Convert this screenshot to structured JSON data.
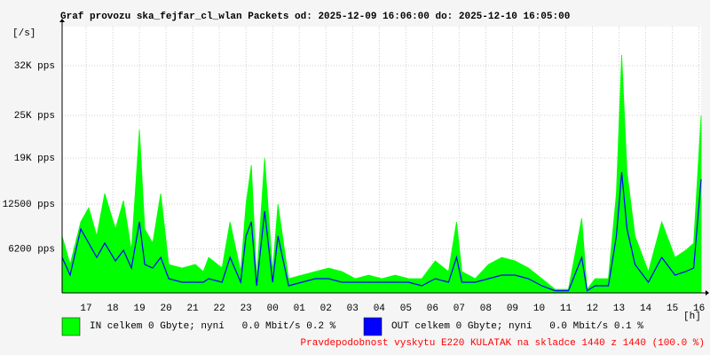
{
  "chart_data": {
    "type": "area",
    "title": "Graf provozu ska_fejfar_cl_wlan Packets od: 2025-12-09 16:06:00 do: 2025-12-10 16:05:00",
    "y_unit_label": "[/s]",
    "x_unit_label": "[h]",
    "footer": "Pravdepodobnost vyskytu E220 KULATAK na skladce 1440 z 1440 (100.0 %)",
    "xlim": [
      0,
      23.98
    ],
    "ylim": [
      0,
      37500
    ],
    "yticks": [
      {
        "value": 6200,
        "label": "6200 pps"
      },
      {
        "value": 12500,
        "label": "12500 pps"
      },
      {
        "value": 19000,
        "label": "19K pps"
      },
      {
        "value": 25000,
        "label": "25K pps"
      },
      {
        "value": 32000,
        "label": "32K pps"
      }
    ],
    "xticks": [
      {
        "value": 0.9,
        "label": "17"
      },
      {
        "value": 1.9,
        "label": "18"
      },
      {
        "value": 2.9,
        "label": "19"
      },
      {
        "value": 3.9,
        "label": "20"
      },
      {
        "value": 4.9,
        "label": "21"
      },
      {
        "value": 5.9,
        "label": "22"
      },
      {
        "value": 6.9,
        "label": "23"
      },
      {
        "value": 7.9,
        "label": "00"
      },
      {
        "value": 8.9,
        "label": "01"
      },
      {
        "value": 9.9,
        "label": "02"
      },
      {
        "value": 10.9,
        "label": "03"
      },
      {
        "value": 11.9,
        "label": "04"
      },
      {
        "value": 12.9,
        "label": "05"
      },
      {
        "value": 13.9,
        "label": "06"
      },
      {
        "value": 14.9,
        "label": "07"
      },
      {
        "value": 15.9,
        "label": "08"
      },
      {
        "value": 16.9,
        "label": "09"
      },
      {
        "value": 17.9,
        "label": "10"
      },
      {
        "value": 18.9,
        "label": "11"
      },
      {
        "value": 19.9,
        "label": "12"
      },
      {
        "value": 20.9,
        "label": "13"
      },
      {
        "value": 21.9,
        "label": "14"
      },
      {
        "value": 22.9,
        "label": "15"
      },
      {
        "value": 23.9,
        "label": "16"
      }
    ],
    "grid": true,
    "x": [
      0,
      0.3,
      0.7,
      1,
      1.3,
      1.6,
      2,
      2.3,
      2.6,
      2.9,
      3.1,
      3.4,
      3.7,
      4,
      4.5,
      5,
      5.3,
      5.5,
      6,
      6.3,
      6.7,
      6.9,
      7.1,
      7.3,
      7.6,
      7.9,
      8.1,
      8.5,
      9,
      9.5,
      10,
      10.5,
      11,
      11.5,
      12,
      12.5,
      13,
      13.5,
      14,
      14.5,
      14.8,
      15,
      15.5,
      16,
      16.5,
      17,
      17.5,
      18,
      18.5,
      19,
      19.5,
      19.7,
      20,
      20.5,
      20.8,
      21,
      21.2,
      21.5,
      22,
      22.5,
      23,
      23.4,
      23.7,
      23.98
    ],
    "series": [
      {
        "name": "IN celkem 0 Gbyte; nyní   0.0 Mbit/s 0.2 %",
        "color": "#00ff00",
        "style": "area",
        "values": [
          8000,
          4000,
          10000,
          12000,
          8000,
          14000,
          9000,
          13000,
          6000,
          23000,
          9000,
          7000,
          14000,
          4000,
          3500,
          4000,
          3000,
          5000,
          3500,
          10000,
          3000,
          12500,
          18000,
          2000,
          19000,
          3000,
          12500,
          2000,
          2500,
          3000,
          3500,
          3000,
          2000,
          2500,
          2000,
          2500,
          2000,
          2000,
          4500,
          3000,
          10000,
          3000,
          2000,
          4000,
          5000,
          4500,
          3500,
          2000,
          500,
          500,
          10500,
          500,
          2000,
          2000,
          14000,
          33500,
          17000,
          8000,
          3000,
          10000,
          5000,
          6000,
          7000,
          25000
        ]
      },
      {
        "name": "OUT celkem 0 Gbyte; nyní   0.0 Mbit/s 0.1 %",
        "color": "#0000ff",
        "style": "line",
        "values": [
          5000,
          2500,
          9000,
          7000,
          5000,
          7000,
          4500,
          6000,
          3500,
          10000,
          4000,
          3500,
          5000,
          2000,
          1500,
          1500,
          1500,
          2000,
          1500,
          5000,
          1500,
          8000,
          10000,
          1000,
          11500,
          1500,
          8000,
          1000,
          1500,
          2000,
          2000,
          1500,
          1500,
          1500,
          1500,
          1500,
          1500,
          1000,
          2000,
          1500,
          5000,
          1500,
          1500,
          2000,
          2500,
          2500,
          2000,
          1000,
          300,
          300,
          5000,
          300,
          1000,
          1000,
          8000,
          17000,
          9000,
          4000,
          1500,
          5000,
          2500,
          3000,
          3500,
          16000
        ]
      }
    ]
  }
}
